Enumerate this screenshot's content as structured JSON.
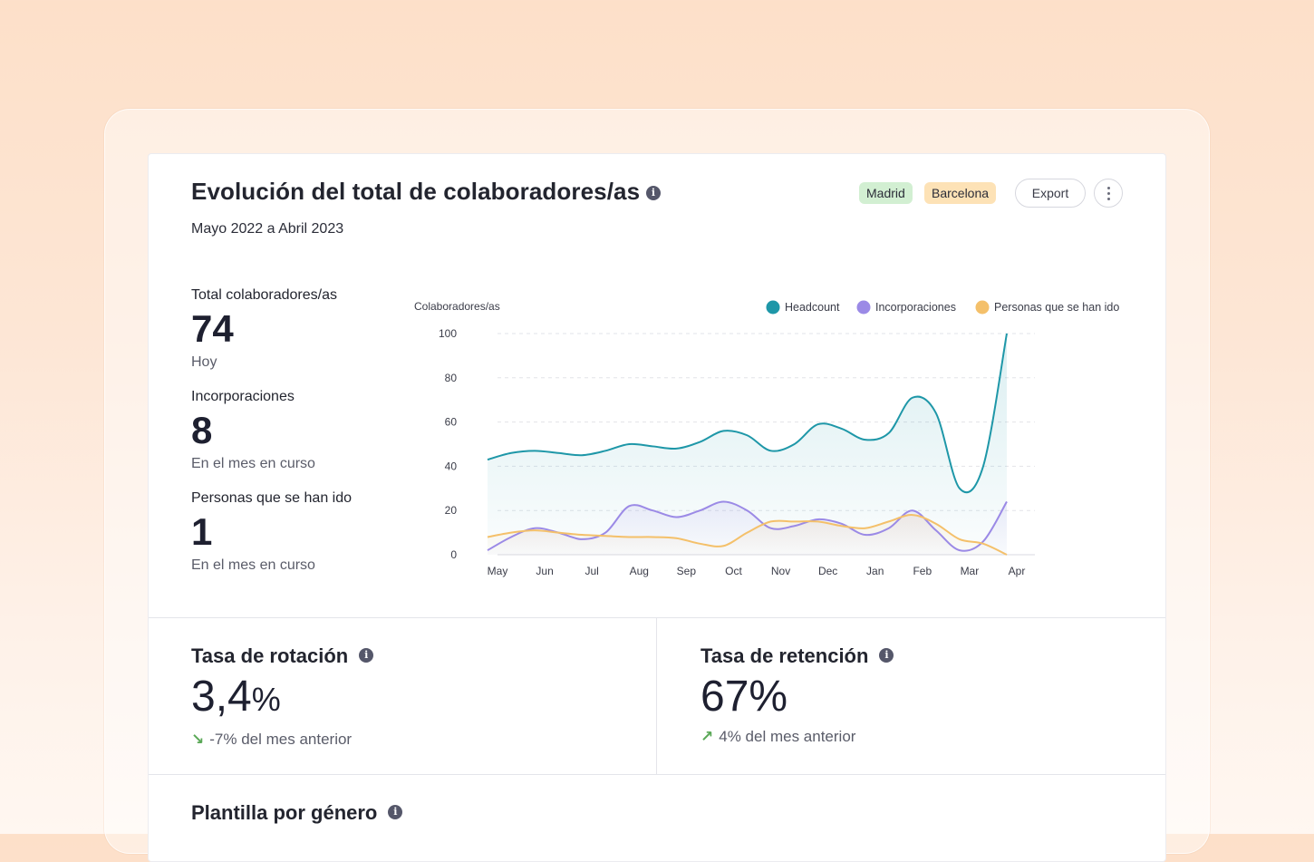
{
  "header": {
    "title": "Evolución del total de colaboradores/as",
    "subtitle": "Mayo 2022 a Abril 2023",
    "tags": [
      {
        "label": "Madrid",
        "color": "#d2efd2"
      },
      {
        "label": "Barcelona",
        "color": "#fde2b6"
      }
    ],
    "export_label": "Export",
    "info_icon": "info-icon",
    "more_icon": "more-vertical-icon"
  },
  "stats": [
    {
      "label": "Total colaboradores/as",
      "value": "74",
      "caption": "Hoy"
    },
    {
      "label": "Incorporaciones",
      "value": "8",
      "caption": "En el mes en curso"
    },
    {
      "label": "Personas que se han ido",
      "value": "1",
      "caption": "En el mes en curso"
    }
  ],
  "chart_data": {
    "type": "line",
    "ylabel": "Colaboradores/as",
    "categories": [
      "May",
      "Jun",
      "Jul",
      "Aug",
      "Sep",
      "Oct",
      "Nov",
      "Dec",
      "Jan",
      "Feb",
      "Mar",
      "Apr"
    ],
    "ylim": [
      0,
      100
    ],
    "yticks": [
      0,
      20,
      40,
      60,
      80,
      100
    ],
    "grid": true,
    "legend": "top-right",
    "series": [
      {
        "name": "Headcount",
        "color": "#1e97a8",
        "points": [
          [
            0,
            43
          ],
          [
            0.5,
            46
          ],
          [
            1,
            47
          ],
          [
            1.5,
            46
          ],
          [
            2,
            45
          ],
          [
            2.5,
            47
          ],
          [
            3,
            50
          ],
          [
            3.5,
            49
          ],
          [
            4,
            48
          ],
          [
            4.5,
            51
          ],
          [
            5,
            56
          ],
          [
            5.5,
            54
          ],
          [
            6,
            47
          ],
          [
            6.5,
            50
          ],
          [
            7,
            59
          ],
          [
            7.5,
            57
          ],
          [
            8,
            52
          ],
          [
            8.5,
            55
          ],
          [
            9,
            71
          ],
          [
            9.5,
            64
          ],
          [
            10,
            30
          ],
          [
            10.5,
            40
          ],
          [
            11,
            100
          ]
        ]
      },
      {
        "name": "Incorporaciones",
        "color": "#9b8ae6",
        "points": [
          [
            0,
            2
          ],
          [
            0.5,
            8
          ],
          [
            1,
            12
          ],
          [
            1.5,
            10
          ],
          [
            2,
            7
          ],
          [
            2.5,
            10
          ],
          [
            3,
            22
          ],
          [
            3.5,
            20
          ],
          [
            4,
            17
          ],
          [
            4.5,
            20
          ],
          [
            5,
            24
          ],
          [
            5.5,
            20
          ],
          [
            6,
            12
          ],
          [
            6.5,
            13
          ],
          [
            7,
            16
          ],
          [
            7.5,
            14
          ],
          [
            8,
            9
          ],
          [
            8.5,
            12
          ],
          [
            9,
            20
          ],
          [
            9.5,
            11
          ],
          [
            10,
            2
          ],
          [
            10.5,
            6
          ],
          [
            11,
            24
          ]
        ]
      },
      {
        "name": "Personas que se han ido",
        "color": "#f4c06a",
        "points": [
          [
            0,
            8
          ],
          [
            0.5,
            10
          ],
          [
            1,
            11
          ],
          [
            1.5,
            10
          ],
          [
            2,
            9
          ],
          [
            2.5,
            8.5
          ],
          [
            3,
            8
          ],
          [
            3.5,
            8
          ],
          [
            4,
            7.5
          ],
          [
            4.5,
            5
          ],
          [
            5,
            4
          ],
          [
            5.5,
            10
          ],
          [
            6,
            15
          ],
          [
            6.5,
            15
          ],
          [
            7,
            15
          ],
          [
            7.5,
            13
          ],
          [
            8,
            12
          ],
          [
            8.5,
            15
          ],
          [
            9,
            18
          ],
          [
            9.5,
            14
          ],
          [
            10,
            7
          ],
          [
            10.5,
            5
          ],
          [
            11,
            0
          ]
        ]
      }
    ]
  },
  "metrics": {
    "rotation": {
      "title": "Tasa de rotación",
      "value": "3,4",
      "unit": "%",
      "change": "-7% del mes anterior",
      "arrow": "↘"
    },
    "retention": {
      "title": "Tasa de retención",
      "value": "67%",
      "change": "4% del mes anterior",
      "arrow": "↗"
    }
  },
  "gender": {
    "title": "Plantilla por género"
  }
}
